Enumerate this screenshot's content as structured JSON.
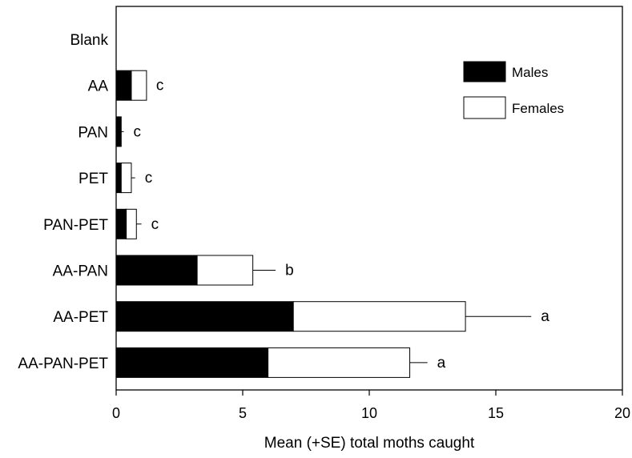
{
  "chart_data": {
    "type": "bar",
    "orientation": "horizontal",
    "stacked": true,
    "title": "",
    "xlabel": "Mean (+SE) total moths caught",
    "ylabel": "",
    "xlim": [
      0,
      20
    ],
    "xticks": [
      0,
      5,
      10,
      15,
      20
    ],
    "categories": [
      "Blank",
      "AA",
      "PAN",
      "PET",
      "PAN-PET",
      "AA-PAN",
      "AA-PET",
      "AA-PAN-PET"
    ],
    "series": [
      {
        "name": "Males",
        "color": "#000000",
        "values": [
          0,
          0.6,
          0.2,
          0.2,
          0.4,
          3.2,
          7.0,
          6.0
        ]
      },
      {
        "name": "Females",
        "color": "#ffffff",
        "values": [
          0,
          0.6,
          0.0,
          0.4,
          0.4,
          2.2,
          6.8,
          5.6
        ]
      }
    ],
    "error_se": [
      0,
      0,
      0.1,
      0.15,
      0.2,
      0.9,
      2.6,
      0.7
    ],
    "significance_letters": [
      "",
      "c",
      "c",
      "c",
      "c",
      "b",
      "a",
      "a"
    ],
    "grid": false,
    "legend_position": "top-right"
  }
}
